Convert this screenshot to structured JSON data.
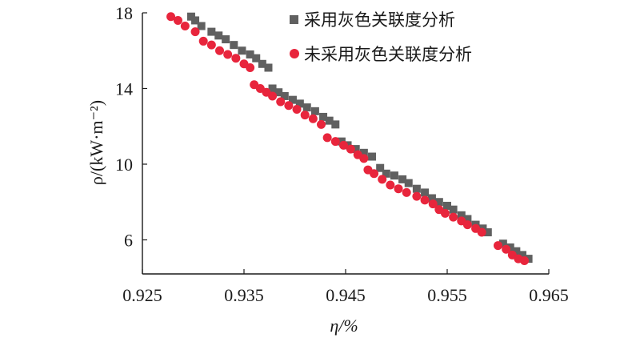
{
  "chart_data": {
    "type": "scatter",
    "xlabel": "η/%",
    "ylabel": "ρ/(kW·m⁻²)",
    "xlim": [
      0.925,
      0.965
    ],
    "ylim": [
      4.2,
      18
    ],
    "xticks": [
      "0.925",
      "0.935",
      "0.945",
      "0.955",
      "0.965"
    ],
    "yticks": [
      "6",
      "10",
      "14",
      "18"
    ],
    "x_tick_values": [
      0.925,
      0.935,
      0.945,
      0.955,
      0.965
    ],
    "y_tick_values": [
      6,
      10,
      14,
      18
    ],
    "grid": false,
    "legend_position": "top-right",
    "series": [
      {
        "name": "采用灰色关联度分析",
        "marker": "square",
        "color": "#606060",
        "points": [
          [
            0.9298,
            17.8
          ],
          [
            0.9302,
            17.6
          ],
          [
            0.9308,
            17.3
          ],
          [
            0.9318,
            17.0
          ],
          [
            0.9325,
            16.8
          ],
          [
            0.9332,
            16.6
          ],
          [
            0.934,
            16.3
          ],
          [
            0.9348,
            16.0
          ],
          [
            0.9356,
            15.8
          ],
          [
            0.9362,
            15.6
          ],
          [
            0.9368,
            15.3
          ],
          [
            0.9374,
            15.1
          ],
          [
            0.9378,
            14.0
          ],
          [
            0.9384,
            13.8
          ],
          [
            0.939,
            13.6
          ],
          [
            0.9398,
            13.4
          ],
          [
            0.9405,
            13.2
          ],
          [
            0.9412,
            13.0
          ],
          [
            0.942,
            12.8
          ],
          [
            0.9428,
            12.5
          ],
          [
            0.9434,
            12.3
          ],
          [
            0.944,
            12.1
          ],
          [
            0.9446,
            11.2
          ],
          [
            0.9452,
            11.0
          ],
          [
            0.946,
            10.8
          ],
          [
            0.9468,
            10.6
          ],
          [
            0.9476,
            10.4
          ],
          [
            0.9484,
            9.8
          ],
          [
            0.949,
            9.5
          ],
          [
            0.9498,
            9.4
          ],
          [
            0.9506,
            9.2
          ],
          [
            0.9512,
            9.0
          ],
          [
            0.952,
            8.7
          ],
          [
            0.9528,
            8.5
          ],
          [
            0.9535,
            8.2
          ],
          [
            0.9542,
            8.0
          ],
          [
            0.955,
            7.8
          ],
          [
            0.9556,
            7.6
          ],
          [
            0.9564,
            7.3
          ],
          [
            0.957,
            7.1
          ],
          [
            0.9578,
            6.8
          ],
          [
            0.9585,
            6.6
          ],
          [
            0.959,
            6.4
          ],
          [
            0.9605,
            5.8
          ],
          [
            0.9612,
            5.6
          ],
          [
            0.9618,
            5.4
          ],
          [
            0.9624,
            5.2
          ],
          [
            0.963,
            5.0
          ]
        ]
      },
      {
        "name": "未采用灰色关联度分析",
        "marker": "circle",
        "color": "#e8253c",
        "points": [
          [
            0.9278,
            17.8
          ],
          [
            0.9285,
            17.6
          ],
          [
            0.9292,
            17.3
          ],
          [
            0.9302,
            17.0
          ],
          [
            0.931,
            16.5
          ],
          [
            0.9318,
            16.3
          ],
          [
            0.9326,
            16.0
          ],
          [
            0.9334,
            15.8
          ],
          [
            0.9342,
            15.6
          ],
          [
            0.935,
            15.3
          ],
          [
            0.9356,
            15.1
          ],
          [
            0.936,
            14.2
          ],
          [
            0.9366,
            14.0
          ],
          [
            0.9372,
            13.8
          ],
          [
            0.9378,
            13.6
          ],
          [
            0.9386,
            13.3
          ],
          [
            0.9394,
            13.1
          ],
          [
            0.9402,
            12.9
          ],
          [
            0.941,
            12.6
          ],
          [
            0.9418,
            12.4
          ],
          [
            0.9426,
            12.1
          ],
          [
            0.9432,
            11.4
          ],
          [
            0.944,
            11.2
          ],
          [
            0.9448,
            11.0
          ],
          [
            0.9455,
            10.8
          ],
          [
            0.9462,
            10.5
          ],
          [
            0.9468,
            10.3
          ],
          [
            0.9472,
            9.7
          ],
          [
            0.9478,
            9.5
          ],
          [
            0.9486,
            9.2
          ],
          [
            0.9494,
            8.9
          ],
          [
            0.9502,
            8.7
          ],
          [
            0.951,
            8.5
          ],
          [
            0.952,
            8.3
          ],
          [
            0.9528,
            8.1
          ],
          [
            0.9536,
            7.9
          ],
          [
            0.9542,
            7.6
          ],
          [
            0.9548,
            7.4
          ],
          [
            0.9556,
            7.2
          ],
          [
            0.9564,
            7.0
          ],
          [
            0.957,
            6.8
          ],
          [
            0.9578,
            6.6
          ],
          [
            0.9584,
            6.4
          ],
          [
            0.96,
            5.7
          ],
          [
            0.9608,
            5.5
          ],
          [
            0.9614,
            5.2
          ],
          [
            0.962,
            5.0
          ],
          [
            0.9626,
            4.9
          ]
        ]
      }
    ]
  }
}
